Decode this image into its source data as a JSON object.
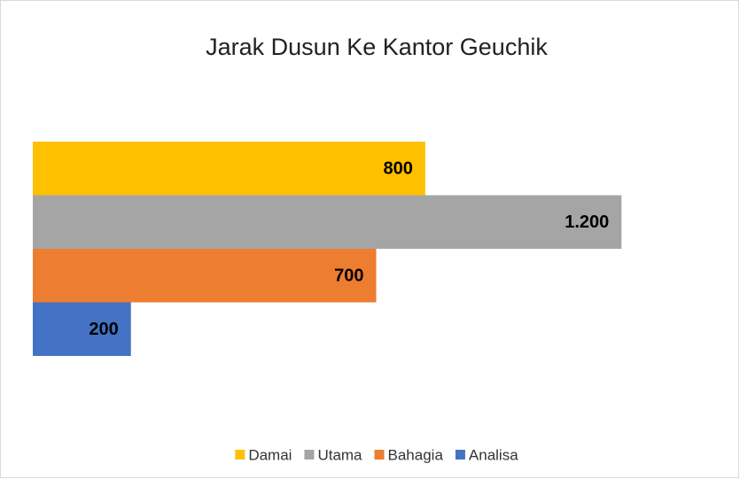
{
  "chart_data": {
    "type": "bar",
    "orientation": "horizontal",
    "title": "Jarak Dusun Ke Kantor Geuchik",
    "series": [
      {
        "name": "Damai",
        "color": "#ffc000",
        "values": [
          800
        ]
      },
      {
        "name": "Utama",
        "color": "#a5a5a5",
        "values": [
          1200
        ],
        "value_labels": [
          "1.200"
        ]
      },
      {
        "name": "Bahagia",
        "color": "#ed7d31",
        "values": [
          700
        ]
      },
      {
        "name": "Analisa",
        "color": "#4472c4",
        "values": [
          200
        ]
      }
    ],
    "xlim": [
      0,
      1400
    ],
    "legend": "bottom",
    "grid": false
  }
}
